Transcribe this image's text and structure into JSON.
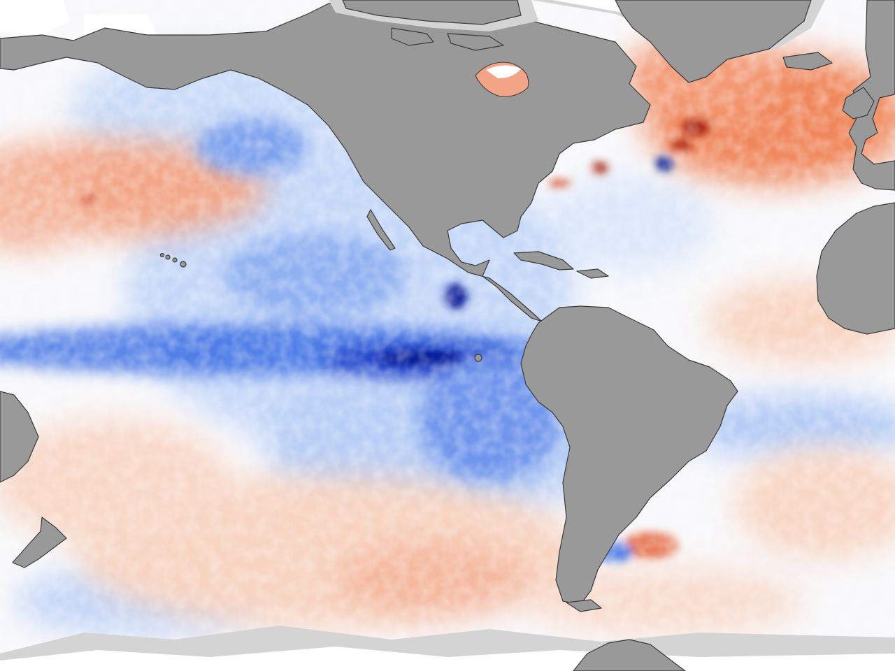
{
  "map": {
    "type": "sea-surface-temperature-anomaly",
    "colors": {
      "land": "#999999",
      "coastline": "#3a3a3a",
      "no_data": "#ffffff",
      "sea_ice_edge": "#d4d4d4",
      "cold_strong": "#00109a",
      "cold": "#2f5fe0",
      "cold_light": "#a8c4f5",
      "neutral": "#f8f8fa",
      "warm_light": "#f7c9b4",
      "warm": "#e8683e",
      "warm_strong": "#a8200f"
    },
    "features": {
      "land": [
        "north-america",
        "south-america",
        "greenland",
        "europe",
        "africa",
        "australia",
        "new-zealand",
        "antarctica",
        "hawaii",
        "galapagos"
      ],
      "anomalies": [
        "equatorial-pacific-cold-tongue",
        "north-pacific-warm-band",
        "north-atlantic-warm-pool",
        "south-pacific-warm",
        "tehuantepec-cold-spot",
        "gulf-stream-eddies"
      ]
    }
  }
}
